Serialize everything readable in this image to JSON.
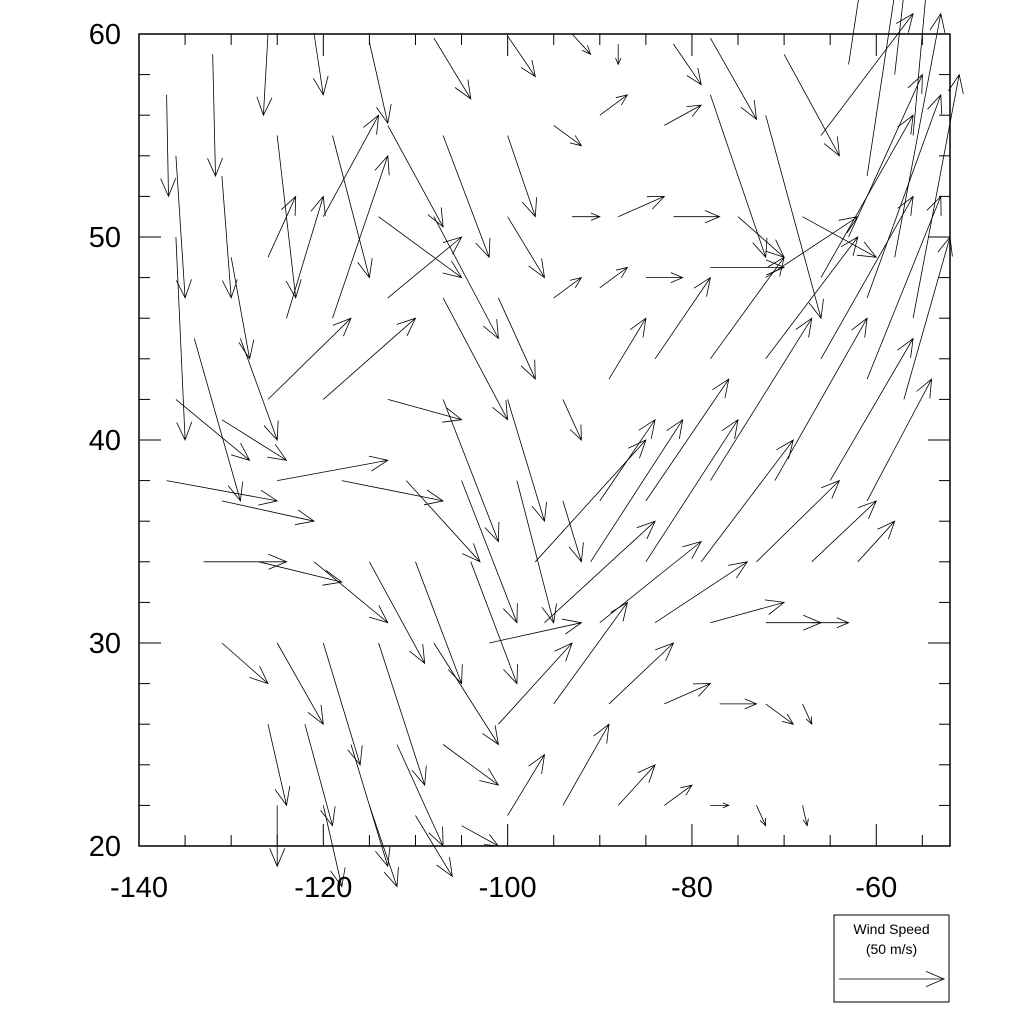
{
  "chart_data": {
    "type": "vector",
    "title": "",
    "xlabel": "",
    "ylabel": "",
    "xlim": [
      -140,
      -52
    ],
    "ylim": [
      20,
      60
    ],
    "x_ticks": [
      "-140",
      "-120",
      "-100",
      "-80",
      "-60"
    ],
    "y_ticks": [
      "20",
      "30",
      "40",
      "50",
      "60"
    ],
    "grid": false,
    "legend": {
      "title": "Wind Speed",
      "reference": "(50 m/s)",
      "reference_speed": 50,
      "placement": "bottom-right"
    },
    "arrow_color": "#000000",
    "vectors": [
      [
        -137,
        57,
        0.2,
        -5
      ],
      [
        -132,
        59,
        0.3,
        -6
      ],
      [
        -126,
        60,
        -0.5,
        -4
      ],
      [
        -121,
        60,
        1,
        -3
      ],
      [
        -115,
        59.6,
        2,
        -4
      ],
      [
        -108,
        59.8,
        4,
        -3
      ],
      [
        -100,
        59.9,
        3,
        -2
      ],
      [
        -93,
        60,
        2,
        -1
      ],
      [
        -88,
        59.5,
        0,
        -1
      ],
      [
        -82,
        59.5,
        3,
        -2
      ],
      [
        -78,
        59.8,
        5,
        -4
      ],
      [
        -70,
        59,
        6,
        -5
      ],
      [
        -63,
        58.5,
        3,
        9
      ],
      [
        -58,
        58,
        3,
        12
      ],
      [
        -136,
        54,
        1,
        -7
      ],
      [
        -131,
        53,
        1,
        -6
      ],
      [
        -125,
        55,
        2,
        -8
      ],
      [
        -119,
        55,
        4,
        -7
      ],
      [
        -113,
        55.5,
        6,
        -5
      ],
      [
        -107,
        55,
        5,
        -6
      ],
      [
        -100,
        55,
        3,
        -4
      ],
      [
        -95,
        55.5,
        3,
        -1
      ],
      [
        -90,
        56,
        3,
        1
      ],
      [
        -83,
        55.5,
        4,
        1
      ],
      [
        -78,
        57,
        6,
        -8
      ],
      [
        -72,
        56,
        6,
        -10
      ],
      [
        -66,
        55,
        10,
        6
      ],
      [
        -61,
        53,
        6,
        18
      ],
      [
        -56,
        55,
        3,
        15
      ],
      [
        -136,
        50,
        1,
        -10
      ],
      [
        -130,
        49,
        2,
        -5
      ],
      [
        -126,
        49,
        3,
        3
      ],
      [
        -120,
        51,
        6,
        5
      ],
      [
        -114,
        51,
        9,
        -3
      ],
      [
        -108,
        51,
        7,
        -6
      ],
      [
        -100,
        51,
        4,
        -3
      ],
      [
        -93,
        51,
        3,
        0
      ],
      [
        -88,
        51,
        5,
        1
      ],
      [
        -82,
        51,
        5,
        0
      ],
      [
        -75,
        51,
        5,
        -2
      ],
      [
        -68,
        51,
        8,
        -2
      ],
      [
        -63,
        50,
        8,
        8
      ],
      [
        -58,
        49,
        5,
        12
      ],
      [
        -134,
        45,
        5,
        -8
      ],
      [
        -129,
        45,
        4,
        -5
      ],
      [
        -124,
        46,
        4,
        6
      ],
      [
        -119,
        46,
        6,
        8
      ],
      [
        -113,
        47,
        8,
        3
      ],
      [
        -107,
        47,
        7,
        -6
      ],
      [
        -101,
        47,
        4,
        -4
      ],
      [
        -95,
        47,
        3,
        1
      ],
      [
        -90,
        47.5,
        3,
        1
      ],
      [
        -85,
        48,
        4,
        0
      ],
      [
        -78,
        48.5,
        8,
        0
      ],
      [
        -72,
        48,
        10,
        3
      ],
      [
        -66,
        48,
        10,
        8
      ],
      [
        -61,
        47,
        8,
        10
      ],
      [
        -56,
        46,
        5,
        12
      ],
      [
        -136,
        42,
        8,
        -3
      ],
      [
        -131,
        41,
        7,
        -2
      ],
      [
        -126,
        42,
        9,
        4
      ],
      [
        -120,
        42,
        10,
        4
      ],
      [
        -113,
        42,
        8,
        -1
      ],
      [
        -107,
        42,
        6,
        -7
      ],
      [
        -100,
        42,
        4,
        -6
      ],
      [
        -94,
        42,
        2,
        -2
      ],
      [
        -89,
        43,
        4,
        3
      ],
      [
        -84,
        44,
        6,
        4
      ],
      [
        -78,
        44,
        8,
        5
      ],
      [
        -72,
        44,
        10,
        6
      ],
      [
        -66,
        44,
        10,
        8
      ],
      [
        -61,
        43,
        8,
        9
      ],
      [
        -57,
        42,
        5,
        8
      ],
      [
        -137,
        38,
        12,
        -1
      ],
      [
        -131,
        37,
        10,
        -1
      ],
      [
        -125,
        38,
        12,
        1
      ],
      [
        -118,
        38,
        11,
        -1
      ],
      [
        -111,
        38,
        8,
        -4
      ],
      [
        -105,
        38,
        6,
        -7
      ],
      [
        -99,
        38,
        4,
        -7
      ],
      [
        -94,
        37,
        2,
        -3
      ],
      [
        -90,
        37,
        6,
        4
      ],
      [
        -85,
        37,
        9,
        6
      ],
      [
        -78,
        38,
        11,
        8
      ],
      [
        -71,
        38,
        10,
        8
      ],
      [
        -65,
        38,
        9,
        7
      ],
      [
        -61,
        37,
        7,
        6
      ],
      [
        -133,
        34,
        9,
        0
      ],
      [
        -127,
        34,
        9,
        -1
      ],
      [
        -121,
        34,
        8,
        -3
      ],
      [
        -115,
        34,
        6,
        -5
      ],
      [
        -110,
        34,
        5,
        -6
      ],
      [
        -104,
        34,
        5,
        -6
      ],
      [
        -97,
        34,
        12,
        6
      ],
      [
        -91,
        34,
        10,
        7
      ],
      [
        -85,
        34,
        10,
        7
      ],
      [
        -79,
        34,
        10,
        6
      ],
      [
        -73,
        34,
        9,
        4
      ],
      [
        -67,
        34,
        7,
        3
      ],
      [
        -62,
        34,
        4,
        2
      ],
      [
        -131,
        30,
        5,
        -2
      ],
      [
        -125,
        30,
        5,
        -4
      ],
      [
        -120,
        30,
        4,
        -6
      ],
      [
        -114,
        30,
        5,
        -7
      ],
      [
        -108,
        30,
        7,
        -5
      ],
      [
        -102,
        30,
        10,
        1
      ],
      [
        -96,
        31,
        12,
        5
      ],
      [
        -90,
        31,
        11,
        4
      ],
      [
        -84,
        31,
        10,
        3
      ],
      [
        -78,
        31,
        8,
        1
      ],
      [
        -72,
        31,
        6,
        0
      ],
      [
        -67,
        31,
        4,
        0
      ],
      [
        -126,
        26,
        2,
        -4
      ],
      [
        -122,
        26,
        3,
        -5
      ],
      [
        -117,
        25,
        4,
        -6
      ],
      [
        -112,
        25,
        5,
        -5
      ],
      [
        -107,
        25,
        6,
        -2
      ],
      [
        -101,
        26,
        8,
        4
      ],
      [
        -95,
        27,
        8,
        5
      ],
      [
        -89,
        27,
        7,
        3
      ],
      [
        -83,
        27,
        5,
        1
      ],
      [
        -77,
        27,
        4,
        0
      ],
      [
        -72,
        27,
        3,
        -1
      ],
      [
        -68,
        27,
        1,
        -1
      ],
      [
        -125,
        22,
        0,
        -3
      ],
      [
        -120,
        22,
        2,
        -4
      ],
      [
        -115,
        22,
        3,
        -4
      ],
      [
        -110,
        21.5,
        4,
        -3
      ],
      [
        -105,
        21,
        4,
        -1
      ],
      [
        -100,
        21.5,
        4,
        3
      ],
      [
        -94,
        22,
        5,
        4
      ],
      [
        -88,
        22,
        4,
        2
      ],
      [
        -83,
        22,
        3,
        1
      ],
      [
        -78,
        22,
        2,
        0
      ],
      [
        -73,
        22,
        1,
        -1
      ],
      [
        -68,
        22,
        0.5,
        -1
      ]
    ]
  }
}
